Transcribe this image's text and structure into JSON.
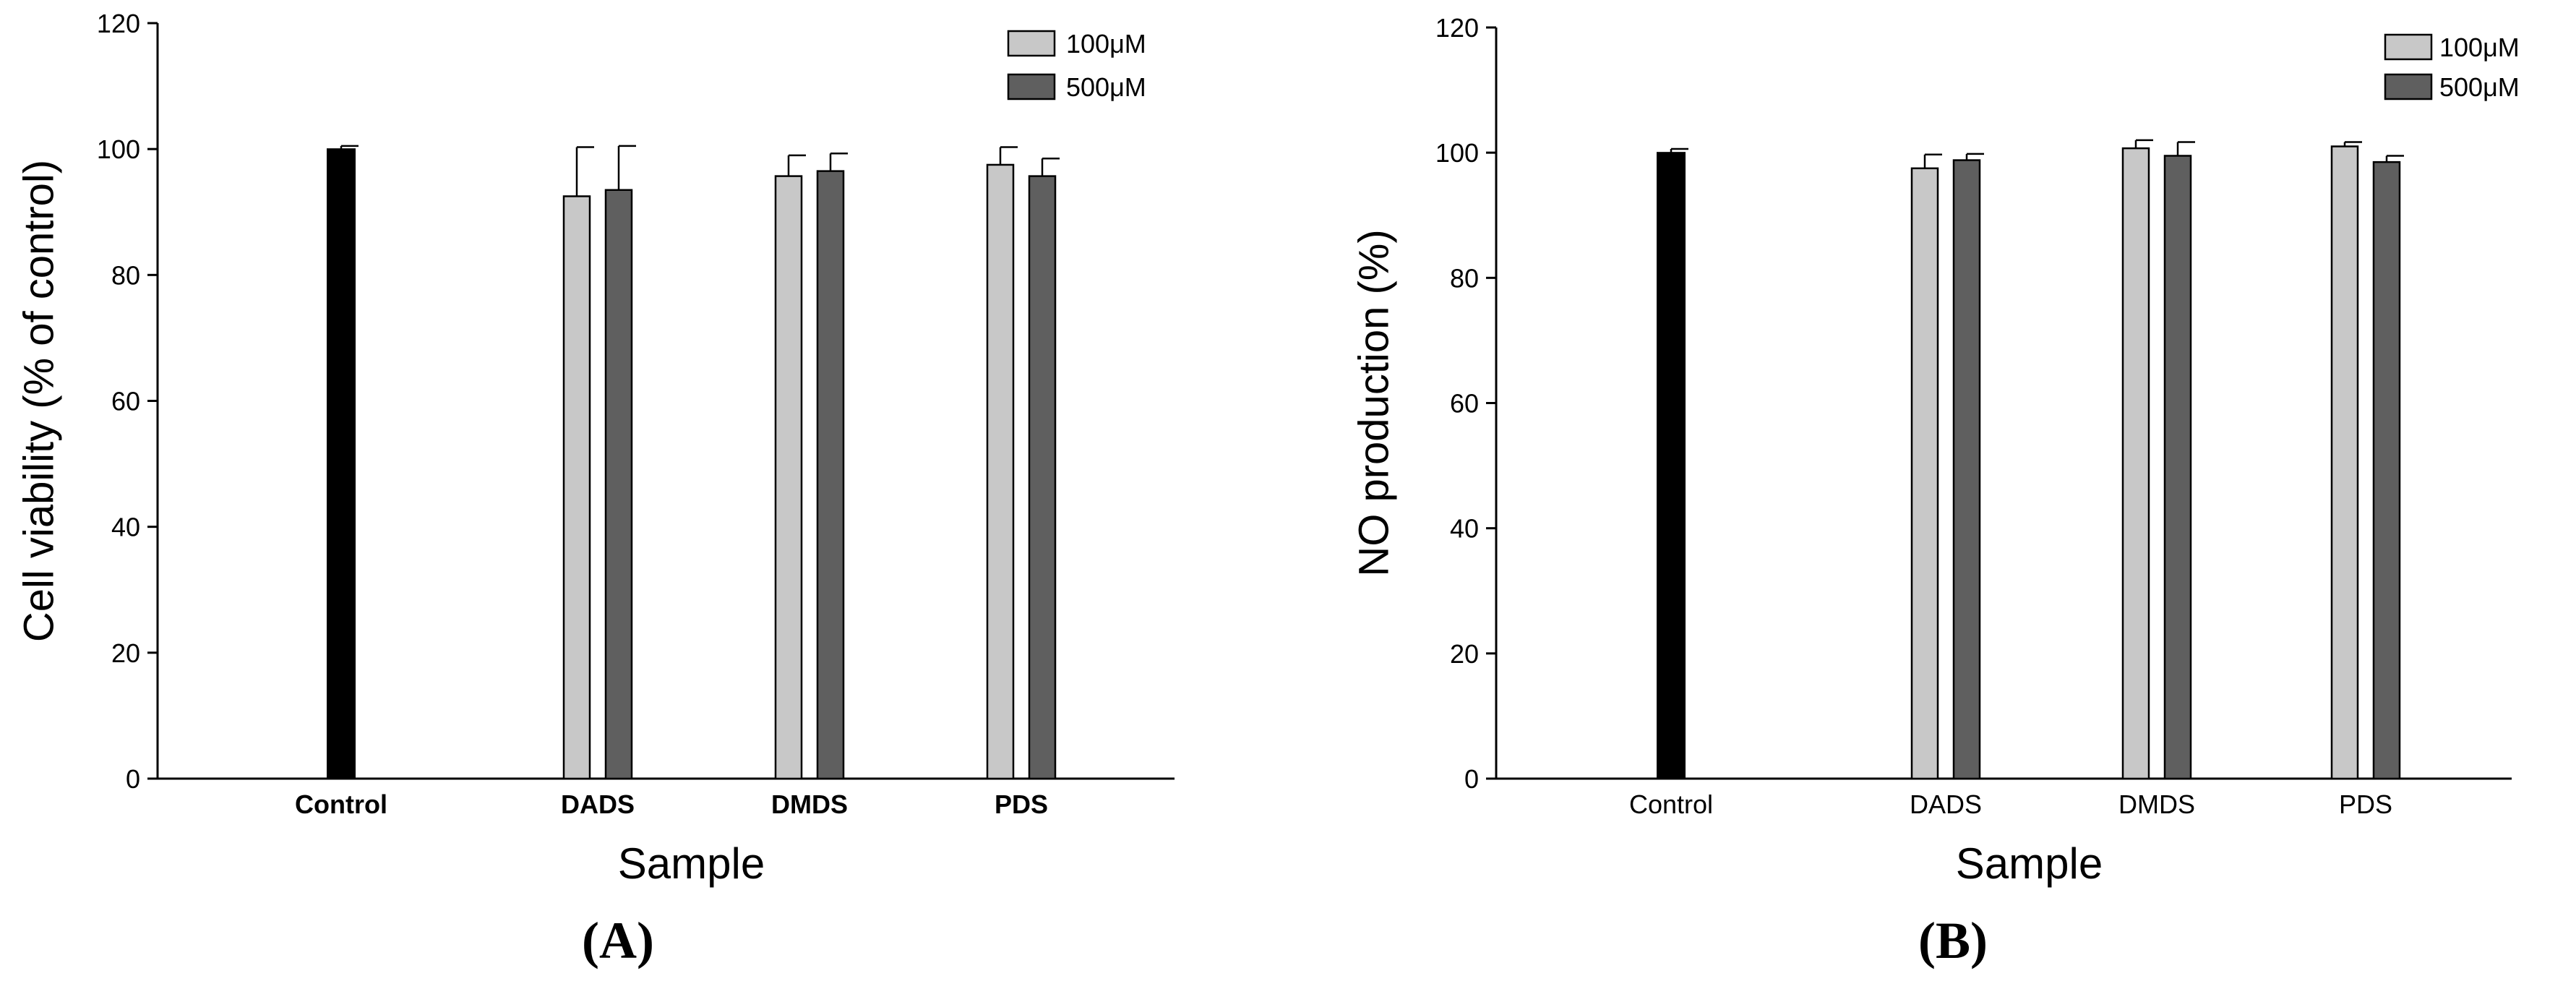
{
  "colors": {
    "control": "#000000",
    "s100": "#c8c8c8",
    "s500": "#5f5f5f",
    "stroke": "#000000"
  },
  "chart_data": [
    {
      "type": "bar",
      "panel_label": "(A)",
      "xlabel": "Sample",
      "ylabel": "Cell viability (% of control)",
      "ylim": [
        0,
        120
      ],
      "yticks": [
        0,
        20,
        40,
        60,
        80,
        100,
        120
      ],
      "categories": [
        "Control",
        "DADS",
        "DMDS",
        "PDS"
      ],
      "category_label_style": "bold",
      "legend_position": "top-right",
      "control": {
        "value": 100.0,
        "error": 0.5
      },
      "series": [
        {
          "name": "100μM",
          "values": [
            null,
            92.5,
            95.7,
            97.5
          ],
          "errors": [
            null,
            7.8,
            3.3,
            2.8
          ]
        },
        {
          "name": "500μM",
          "values": [
            null,
            93.5,
            96.5,
            95.7
          ],
          "errors": [
            null,
            7.0,
            2.8,
            2.8
          ]
        }
      ]
    },
    {
      "type": "bar",
      "panel_label": "(B)",
      "xlabel": "Sample",
      "ylabel": "NO production (%)",
      "ylim": [
        0,
        120
      ],
      "yticks": [
        0,
        20,
        40,
        60,
        80,
        100,
        120
      ],
      "categories": [
        "Control",
        "DADS",
        "DMDS",
        "PDS"
      ],
      "category_label_style": "normal",
      "legend_position": "top-right",
      "control": {
        "value": 100.0,
        "error": 0.6
      },
      "series": [
        {
          "name": "100μM",
          "values": [
            null,
            97.5,
            100.7,
            101.0
          ],
          "errors": [
            null,
            2.2,
            1.3,
            0.7
          ]
        },
        {
          "name": "500μM",
          "values": [
            null,
            98.8,
            99.5,
            98.5
          ],
          "errors": [
            null,
            1.0,
            2.2,
            1.0
          ]
        }
      ]
    }
  ]
}
